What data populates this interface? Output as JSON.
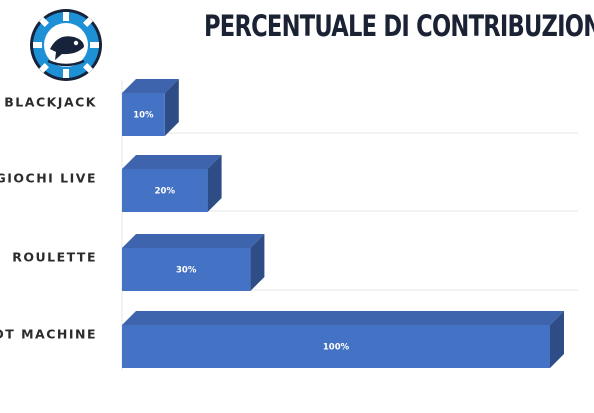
{
  "chart_data": {
    "type": "bar",
    "orientation": "horizontal",
    "title": "PERCENTUALE DI CONTRIBUZIONE",
    "categories": [
      "BLACKJACK",
      "GIOCHI LIVE",
      "ROULETTE",
      "SLOT MACHINE"
    ],
    "values": [
      10,
      20,
      30,
      100
    ],
    "data_labels": [
      "10%",
      "20%",
      "30%",
      "100%"
    ],
    "xlim": [
      0,
      100
    ],
    "grid": true,
    "bar_style": "3d",
    "colors": {
      "bar_front": "#4472c4",
      "bar_top": "#3d64ad",
      "bar_side": "#2e4d87",
      "grid": "#e6e6e6",
      "title": "#1a2233"
    }
  },
  "logo": {
    "icon": "fish-poker-chip-logo",
    "colors": {
      "ring": "#1e90d6",
      "center": "#ffffff",
      "dark": "#16233a"
    }
  }
}
